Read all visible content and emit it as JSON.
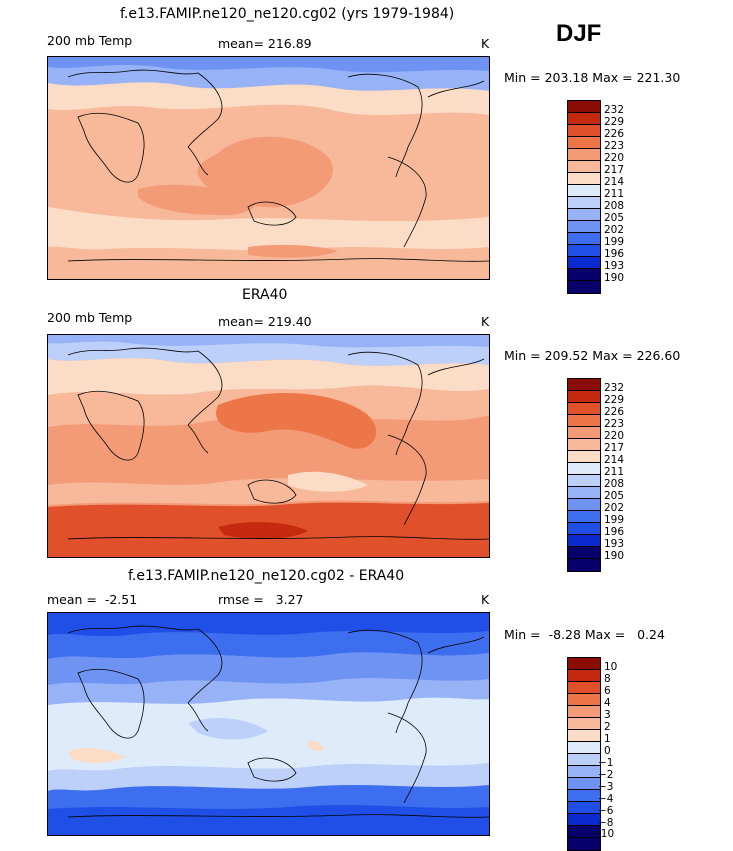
{
  "season": "DJF",
  "panels": [
    {
      "title": "f.e13.FAMIP.ne120_ne120.cg02 (yrs 1979-1984)",
      "left_label": "200 mb Temp",
      "center_label": "mean= 216.89",
      "units": "K",
      "minmax": "Min = 203.18 Max = 221.30",
      "scale_labels": [
        "232",
        "229",
        "226",
        "223",
        "220",
        "217",
        "214",
        "211",
        "208",
        "205",
        "202",
        "199",
        "196",
        "193",
        "190"
      ]
    },
    {
      "title": "ERA40",
      "left_label": "200 mb Temp",
      "center_label": "mean= 219.40",
      "units": "K",
      "minmax": "Min = 209.52 Max = 226.60",
      "scale_labels": [
        "232",
        "229",
        "226",
        "223",
        "220",
        "217",
        "214",
        "211",
        "208",
        "205",
        "202",
        "199",
        "196",
        "193",
        "190"
      ]
    },
    {
      "title": "f.e13.FAMIP.ne120_ne120.cg02 - ERA40",
      "left_label": "mean =  -2.51",
      "center_label": "rmse =   3.27",
      "units": "K",
      "minmax": "Min =  -8.28 Max =   0.24",
      "scale_labels": [
        "10",
        "8",
        "6",
        "4",
        "3",
        "2",
        "1",
        "0",
        "−1",
        "−2",
        "−3",
        "−4",
        "−6",
        "−8",
        "−10"
      ]
    }
  ],
  "chart_data": [
    {
      "type": "heatmap",
      "title": "f.e13.FAMIP.ne120_ne120.cg02 (yrs 1979-1984)",
      "variable": "200 mb Temp",
      "units": "K",
      "mean": 216.89,
      "min": 203.18,
      "max": 221.3,
      "colorbar_levels": [
        190,
        193,
        196,
        199,
        202,
        205,
        208,
        211,
        214,
        217,
        220,
        223,
        226,
        229,
        232
      ],
      "colors": [
        "#08006b",
        "#0a2ad0",
        "#1f4fe6",
        "#3d6ef0",
        "#6f93f2",
        "#97b2f6",
        "#bcd0f9",
        "#ddebfb",
        "#fbdcc6",
        "#f8b89a",
        "#f39a76",
        "#ec7648",
        "#e0502a",
        "#c5290e",
        "#8b0d05"
      ]
    },
    {
      "type": "heatmap",
      "title": "ERA40",
      "variable": "200 mb Temp",
      "units": "K",
      "mean": 219.4,
      "min": 209.52,
      "max": 226.6,
      "colorbar_levels": [
        190,
        193,
        196,
        199,
        202,
        205,
        208,
        211,
        214,
        217,
        220,
        223,
        226,
        229,
        232
      ],
      "colors": [
        "#08006b",
        "#0a2ad0",
        "#1f4fe6",
        "#3d6ef0",
        "#6f93f2",
        "#97b2f6",
        "#bcd0f9",
        "#ddebfb",
        "#fbdcc6",
        "#f8b89a",
        "#f39a76",
        "#ec7648",
        "#e0502a",
        "#c5290e",
        "#8b0d05"
      ]
    },
    {
      "type": "heatmap",
      "title": "f.e13.FAMIP.ne120_ne120.cg02 - ERA40",
      "units": "K",
      "mean": -2.51,
      "rmse": 3.27,
      "min": -8.28,
      "max": 0.24,
      "colorbar_levels": [
        -10,
        -8,
        -6,
        -4,
        -3,
        -2,
        -1,
        0,
        1,
        2,
        3,
        4,
        6,
        8,
        10
      ],
      "colors": [
        "#08006b",
        "#0a2ad0",
        "#1f4fe6",
        "#3d6ef0",
        "#6f93f2",
        "#97b2f6",
        "#bcd0f9",
        "#ddebfb",
        "#fbdcc6",
        "#f8b89a",
        "#f39a76",
        "#ec7648",
        "#e0502a",
        "#c5290e",
        "#8b0d05"
      ]
    }
  ]
}
